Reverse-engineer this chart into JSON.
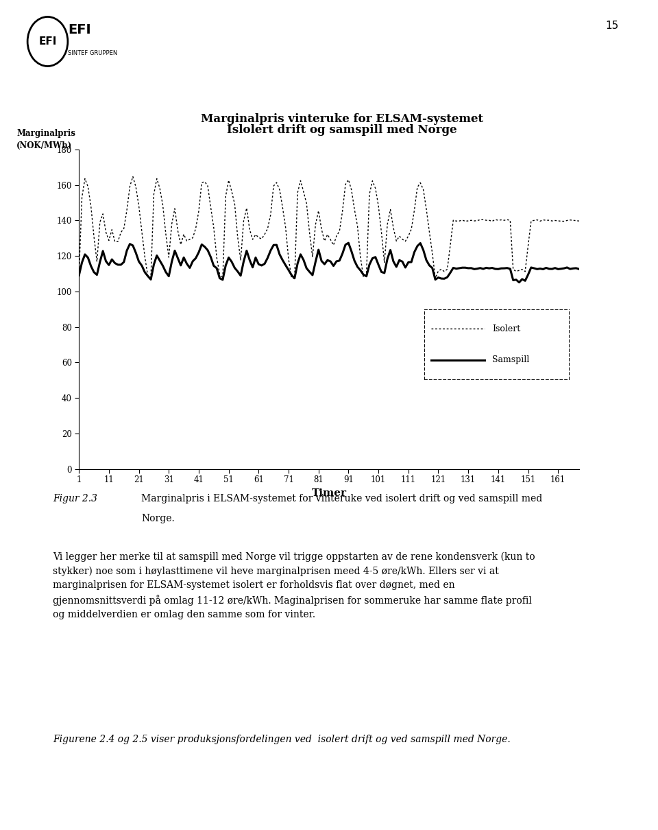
{
  "title_line1": "Marginalpris vinteruke for ELSAM-systemet",
  "title_line2": "Islolert drift og samspill med Norge",
  "ylabel_top": "Marginalpris",
  "ylabel_bottom": "(NOK/MWh)",
  "xlabel": "Timer",
  "xlim": [
    1,
    168
  ],
  "ylim": [
    0,
    180
  ],
  "yticks": [
    0,
    20,
    40,
    60,
    80,
    100,
    120,
    140,
    160,
    180
  ],
  "xticks": [
    1,
    11,
    21,
    31,
    41,
    51,
    61,
    71,
    81,
    91,
    101,
    111,
    121,
    131,
    141,
    151,
    161
  ],
  "legend_isolert": "Isolert",
  "legend_samspill": "Samspill",
  "page_number": "15",
  "background_color": "#ffffff"
}
